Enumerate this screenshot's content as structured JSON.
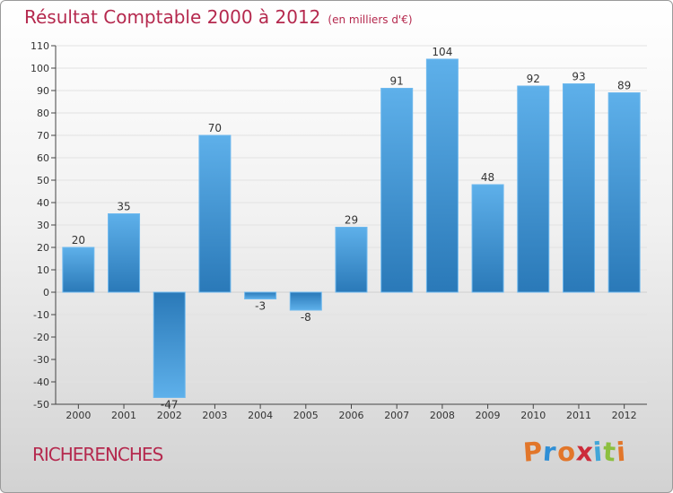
{
  "header": {
    "title": "Résultat Comptable 2000 à 2012",
    "subtitle": "(en milliers d'€)"
  },
  "footer": {
    "town": "RICHERENCHES",
    "logo_letters": [
      "P",
      "r",
      "o",
      "x",
      "i",
      "t",
      "i"
    ],
    "logo_colors": [
      "#e2762a",
      "#2f8fd6",
      "#e2762a",
      "#cc2b3a",
      "#41a6d8",
      "#8cbf3f",
      "#e2762a"
    ]
  },
  "colors": {
    "title": "#b5294e",
    "bar_light": "#5eb0ea",
    "bar_dark": "#2a79b8",
    "axis": "#444444",
    "grid": "#e2e2e2"
  },
  "chart_data": {
    "type": "bar",
    "title": "Résultat Comptable 2000 à 2012",
    "ylabel": "(en milliers d'€)",
    "xlabel": "",
    "categories": [
      "2000",
      "2001",
      "2002",
      "2003",
      "2004",
      "2005",
      "2006",
      "2007",
      "2008",
      "2009",
      "2010",
      "2011",
      "2012"
    ],
    "values": [
      20,
      35,
      -47,
      70,
      -3,
      -8,
      29,
      91,
      104,
      48,
      92,
      93,
      89
    ],
    "ylim": [
      -50,
      110
    ],
    "yticks": [
      110,
      100,
      90,
      80,
      70,
      60,
      50,
      40,
      30,
      20,
      10,
      0,
      -10,
      -20,
      -30,
      -40,
      -50
    ],
    "grid": true
  }
}
